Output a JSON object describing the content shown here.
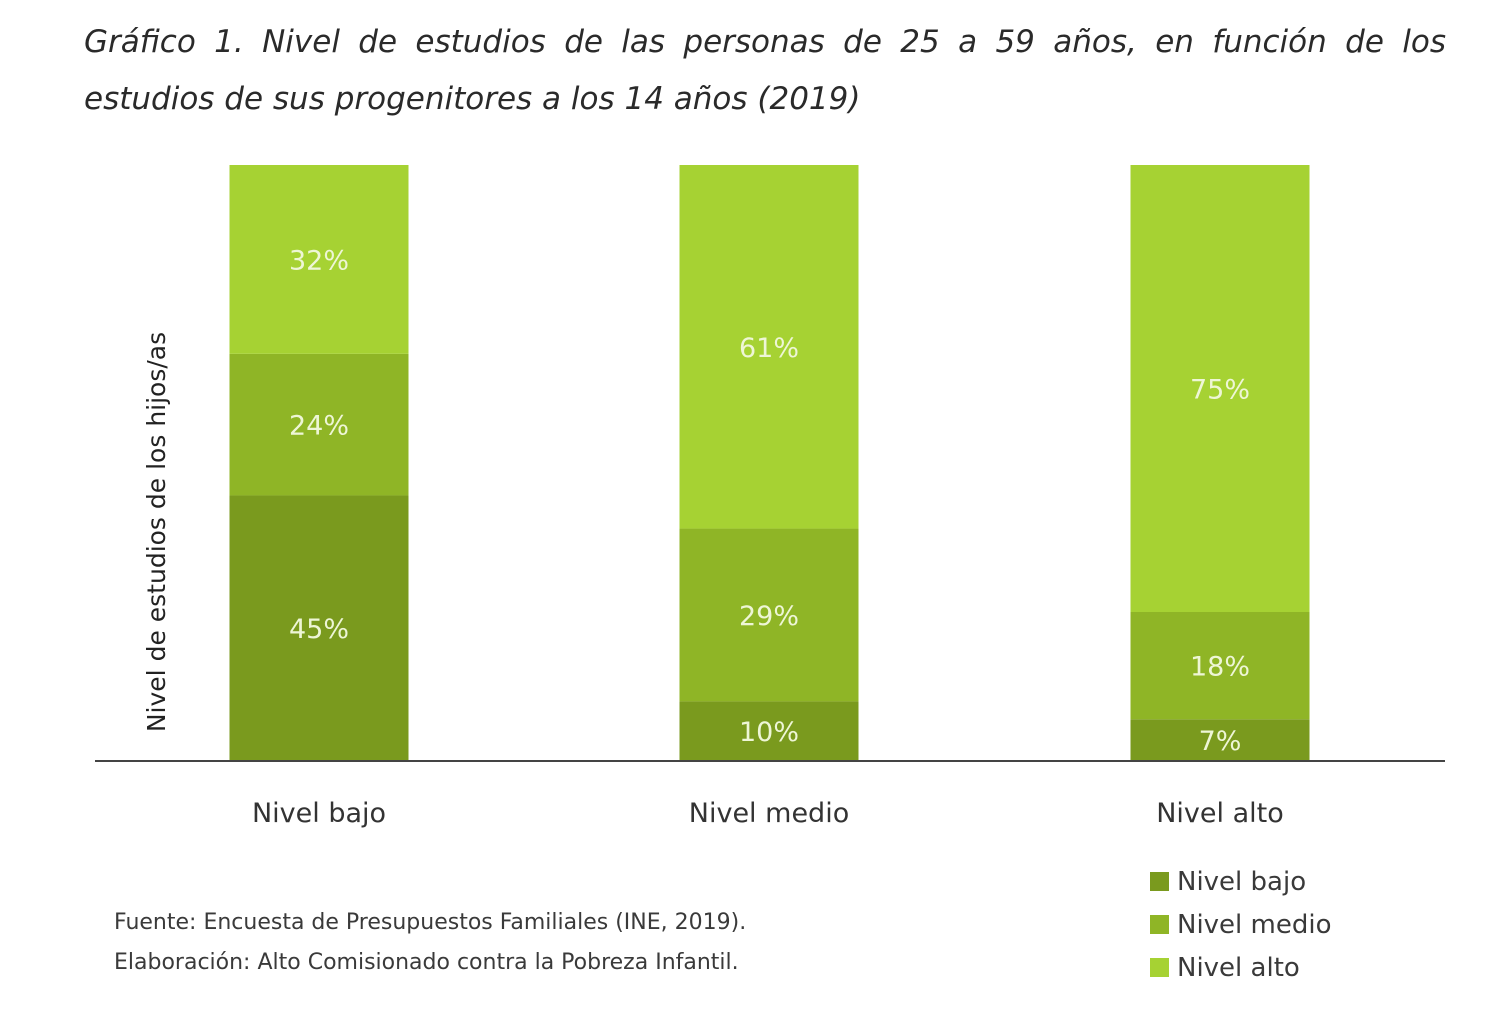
{
  "chart_data": {
    "type": "bar",
    "stacked": true,
    "title": "Gráfico 1. Nivel de estudios de las personas de 25 a 59 años, en función de los estudios de sus progenitores a los 14 años (2019)",
    "ylabel": "Nivel de estudios de los hijos/as",
    "xlabel": "",
    "categories": [
      "Nivel bajo",
      "Nivel medio",
      "Nivel alto"
    ],
    "series": [
      {
        "name": "Nivel bajo",
        "values": [
          45,
          10,
          7
        ],
        "color": "#7a9a1e"
      },
      {
        "name": "Nivel medio",
        "values": [
          24,
          29,
          18
        ],
        "color": "#8fb526"
      },
      {
        "name": "Nivel alto",
        "values": [
          32,
          61,
          75
        ],
        "color": "#a6d233"
      }
    ],
    "data_labels": [
      [
        "45%",
        "10%",
        "7%"
      ],
      [
        "24%",
        "29%",
        "18%"
      ],
      [
        "32%",
        "61%",
        "75%"
      ]
    ],
    "unit": "%",
    "ylim": [
      0,
      100
    ],
    "grid": false,
    "legend_position": "bottom-right",
    "label_color": "#eef6d6"
  },
  "source": {
    "line1": "Fuente: Encuesta de Presupuestos Familiales (INE, 2019).",
    "line2": "Elaboración: Alto Comisionado contra la Pobreza Infantil."
  }
}
